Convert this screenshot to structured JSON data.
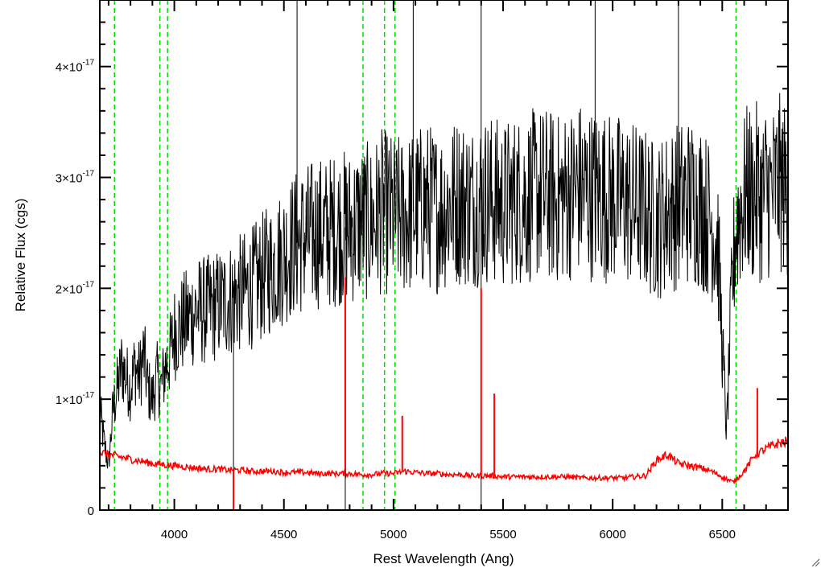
{
  "chart_data": {
    "type": "line",
    "title": "",
    "xlabel": "Rest Wavelength (Ang)",
    "ylabel": "Relative Flux (cgs)",
    "xlim": [
      3660,
      6800
    ],
    "ylim": [
      0,
      4.6e-17
    ],
    "x_ticks": [
      {
        "value": 4000,
        "label": "4000"
      },
      {
        "value": 4500,
        "label": "4500"
      },
      {
        "value": 5000,
        "label": "5000"
      },
      {
        "value": 5500,
        "label": "5500"
      },
      {
        "value": 6000,
        "label": "6000"
      },
      {
        "value": 6500,
        "label": "6500"
      }
    ],
    "y_ticks": [
      {
        "value": 0,
        "mantissa": "0",
        "times": "",
        "exp": ""
      },
      {
        "value": 1e-17,
        "mantissa": "1",
        "times": "×10",
        "exp": "-17"
      },
      {
        "value": 2e-17,
        "mantissa": "2",
        "times": "×10",
        "exp": "-17"
      },
      {
        "value": 3e-17,
        "mantissa": "3",
        "times": "×10",
        "exp": "-17"
      },
      {
        "value": 4e-17,
        "mantissa": "4",
        "times": "×10",
        "exp": "-17"
      }
    ],
    "vertical_lines": [
      3727,
      3934,
      3969,
      4861,
      4959,
      5007,
      6563
    ],
    "grid": false,
    "series": [
      {
        "color": "#000000",
        "x": [
          3660,
          3680,
          3700,
          3720,
          3740,
          3760,
          3780,
          3800,
          3820,
          3840,
          3860,
          3880,
          3900,
          3920,
          3940,
          3960,
          3980,
          4000,
          4050,
          4100,
          4150,
          4200,
          4250,
          4300,
          4350,
          4400,
          4450,
          4500,
          4550,
          4600,
          4650,
          4700,
          4750,
          4800,
          4850,
          4900,
          4950,
          5000,
          5050,
          5100,
          5150,
          5200,
          5250,
          5300,
          5350,
          5400,
          5450,
          5500,
          5550,
          5600,
          5650,
          5700,
          5750,
          5800,
          5850,
          5900,
          5950,
          6000,
          6050,
          6100,
          6150,
          6200,
          6250,
          6300,
          6350,
          6400,
          6450,
          6480,
          6500,
          6520,
          6540,
          6560,
          6580,
          6600,
          6620,
          6640,
          6660,
          6680,
          6700,
          6720,
          6740,
          6760,
          6780,
          6800
        ],
        "values": [
          9e-18,
          6e-18,
          4e-18,
          9e-18,
          1.1e-17,
          1.3e-17,
          1.2e-17,
          1.1e-17,
          1.3e-17,
          1.2e-17,
          1.4e-17,
          1.1e-17,
          1e-17,
          1.2e-17,
          1.1e-17,
          1.3e-17,
          1.4e-17,
          1.6e-17,
          1.7e-17,
          1.8e-17,
          1.8e-17,
          1.85e-17,
          1.9e-17,
          1.95e-17,
          2e-17,
          2.1e-17,
          2.2e-17,
          2.3e-17,
          2.4e-17,
          2.45e-17,
          2.5e-17,
          2.5e-17,
          2.55e-17,
          2.55e-17,
          2.6e-17,
          2.6e-17,
          2.7e-17,
          2.65e-17,
          2.65e-17,
          2.7e-17,
          2.75e-17,
          2.7e-17,
          2.75e-17,
          2.8e-17,
          2.75e-17,
          2.8e-17,
          2.8e-17,
          2.75e-17,
          2.8e-17,
          2.8e-17,
          2.85e-17,
          2.85e-17,
          2.8e-17,
          2.85e-17,
          2.9e-17,
          2.85e-17,
          2.85e-17,
          2.8e-17,
          2.8e-17,
          2.75e-17,
          2.7e-17,
          2.6e-17,
          2.7e-17,
          2.75e-17,
          2.8e-17,
          2.75e-17,
          2.6e-17,
          2.4e-17,
          1.5e-17,
          7e-18,
          1.8e-17,
          2.5e-17,
          2.7e-17,
          2.8e-17,
          2.9e-17,
          2.8e-17,
          2.9e-17,
          2.8e-17,
          2.9e-17,
          2.85e-17,
          2.9e-17,
          2.95e-17,
          2.9e-17,
          2.9e-17
        ]
      },
      {
        "color": "#ff0000",
        "x": [
          3660,
          3700,
          3750,
          3800,
          3850,
          3900,
          3950,
          4000,
          4050,
          4100,
          4150,
          4200,
          4250,
          4300,
          4350,
          4400,
          4450,
          4500,
          4550,
          4600,
          4650,
          4700,
          4750,
          4800,
          4850,
          4900,
          4950,
          5000,
          5050,
          5100,
          5150,
          5200,
          5250,
          5300,
          5350,
          5400,
          5450,
          5500,
          5550,
          5600,
          5650,
          5700,
          5750,
          5800,
          5850,
          5900,
          5950,
          6000,
          6050,
          6100,
          6150,
          6200,
          6250,
          6300,
          6350,
          6400,
          6450,
          6500,
          6550,
          6600,
          6650,
          6700,
          6750,
          6800
        ],
        "values": [
          5.2e-18,
          5e-18,
          4.8e-18,
          4.6e-18,
          4.4e-18,
          4.2e-18,
          4.1e-18,
          4e-18,
          3.9e-18,
          3.8e-18,
          3.7e-18,
          3.7e-18,
          3.6e-18,
          3.6e-18,
          3.5e-18,
          3.5e-18,
          3.5e-18,
          3.4e-18,
          3.4e-18,
          3.4e-18,
          3.3e-18,
          3.3e-18,
          3.3e-18,
          3.3e-18,
          3.2e-18,
          3.2e-18,
          3.3e-18,
          3.3e-18,
          3.5e-18,
          3.4e-18,
          3.3e-18,
          3.3e-18,
          3.2e-18,
          3.2e-18,
          3.1e-18,
          3.1e-18,
          3.1e-18,
          3e-18,
          3e-18,
          3e-18,
          3e-18,
          3e-18,
          3e-18,
          3e-18,
          2.9e-18,
          2.9e-18,
          2.9e-18,
          2.9e-18,
          2.9e-18,
          3e-18,
          3.1e-18,
          4.5e-18,
          5e-18,
          4.2e-18,
          4e-18,
          3.8e-18,
          3.5e-18,
          3e-18,
          2.5e-18,
          3.5e-18,
          5e-18,
          5.5e-18,
          6e-18,
          6.2e-18
        ]
      }
    ],
    "spikes": [
      {
        "series": 0,
        "x": 4270,
        "value": 0.0
      },
      {
        "series": 0,
        "x": 4560,
        "value": 4.6e-17
      },
      {
        "series": 0,
        "x": 4780,
        "value": 0.0
      },
      {
        "series": 0,
        "x": 5090,
        "value": 4.6e-17
      },
      {
        "series": 0,
        "x": 5400,
        "value": 0.0
      },
      {
        "series": 0,
        "x": 5400,
        "value": 4.6e-17
      },
      {
        "series": 0,
        "x": 5920,
        "value": 4.6e-17
      },
      {
        "series": 0,
        "x": 6300,
        "value": 4.6e-17
      },
      {
        "series": 1,
        "x": 4270,
        "value": 0.0
      },
      {
        "series": 1,
        "x": 4780,
        "value": 2.1e-17
      },
      {
        "series": 1,
        "x": 5040,
        "value": 8.5e-18
      },
      {
        "series": 1,
        "x": 5400,
        "value": 2e-17
      },
      {
        "series": 1,
        "x": 5460,
        "value": 1.05e-17
      },
      {
        "series": 1,
        "x": 6660,
        "value": 1.1e-17
      }
    ]
  }
}
